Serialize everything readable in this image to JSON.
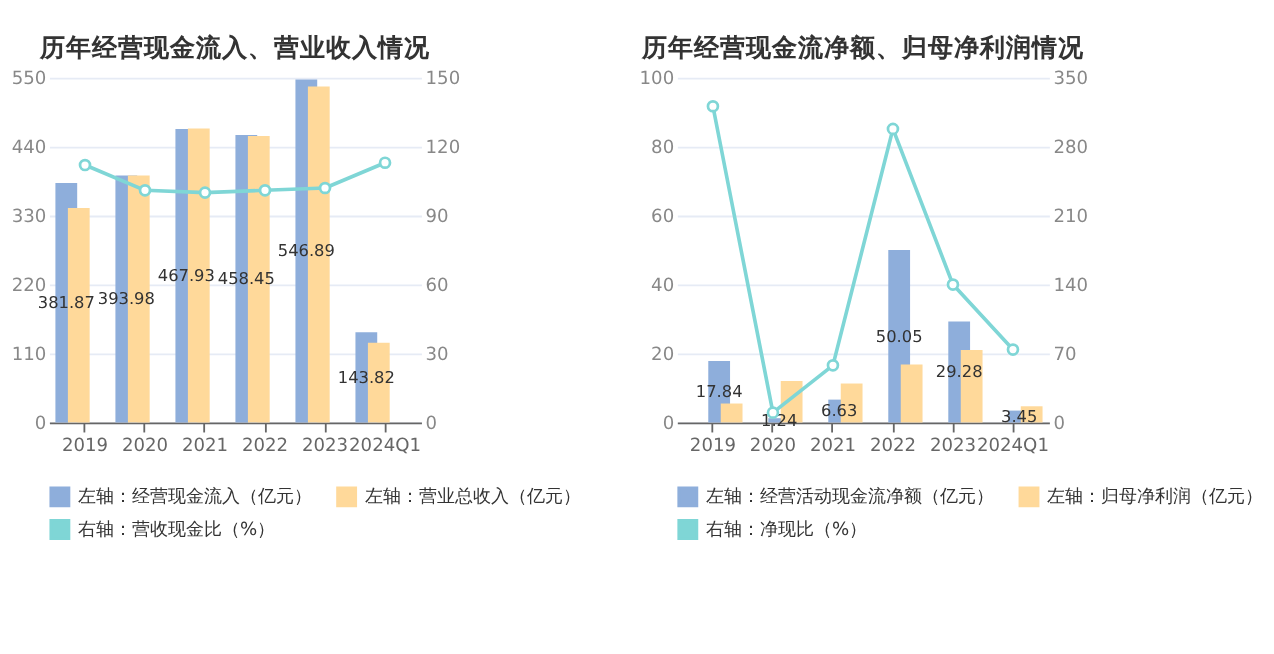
{
  "chart_data": [
    {
      "type": "bar",
      "title": "历年经营现金流入、营业收入情况",
      "categories": [
        "2019",
        "2020",
        "2021",
        "2022",
        "2023",
        "2024Q1"
      ],
      "series": [
        {
          "name": "左轴：经营现金流入（亿元）",
          "color": "#8eaedb",
          "values": [
            381.87,
            393.98,
            467.93,
            458.45,
            546.89,
            143.82
          ],
          "value_labels": [
            "381.87",
            "393.98",
            "467.93",
            "458.45",
            "546.89",
            "143.82"
          ]
        },
        {
          "name": "左轴：营业总收入（亿元）",
          "color": "#ffd99a",
          "values": [
            342,
            394,
            469,
            457,
            536,
            127
          ]
        },
        {
          "name": "右轴：营收现金比（%）",
          "type": "line",
          "axis": "y2",
          "color": "#7fd6d6",
          "values": [
            112,
            101,
            100,
            101,
            102,
            113
          ]
        }
      ],
      "ylim": [
        0,
        550
      ],
      "yticks": [
        0,
        110,
        220,
        330,
        440,
        550
      ],
      "y2lim": [
        0,
        150
      ],
      "y2ticks": [
        0,
        30,
        60,
        90,
        120,
        150
      ],
      "grid": "y",
      "legend": "bottom",
      "marker": "circle"
    },
    {
      "type": "bar",
      "title": "历年经营现金流净额、归母净利润情况",
      "categories": [
        "2019",
        "2020",
        "2021",
        "2022",
        "2023",
        "2024Q1"
      ],
      "series": [
        {
          "name": "左轴：经营活动现金流净额（亿元）",
          "color": "#8eaedb",
          "values": [
            17.84,
            1.24,
            6.63,
            50.05,
            29.28,
            3.45
          ],
          "value_labels": [
            "17.84",
            "1.24",
            "6.63",
            "50.05",
            "29.28",
            "3.45"
          ]
        },
        {
          "name": "左轴：归母净利润（亿元）",
          "color": "#ffd99a",
          "values": [
            5.5,
            12,
            11.3,
            16.8,
            21,
            4.7
          ]
        },
        {
          "name": "右轴：净现比（%）",
          "type": "line",
          "axis": "y2",
          "color": "#7fd6d6",
          "values": [
            321,
            10,
            58,
            298,
            140,
            74
          ]
        }
      ],
      "ylim": [
        0,
        100
      ],
      "yticks": [
        0,
        20,
        40,
        60,
        80,
        100
      ],
      "y2lim": [
        0,
        350
      ],
      "y2ticks": [
        0,
        70,
        140,
        210,
        280,
        350
      ],
      "grid": "y",
      "legend": "bottom",
      "marker": "circle"
    }
  ]
}
